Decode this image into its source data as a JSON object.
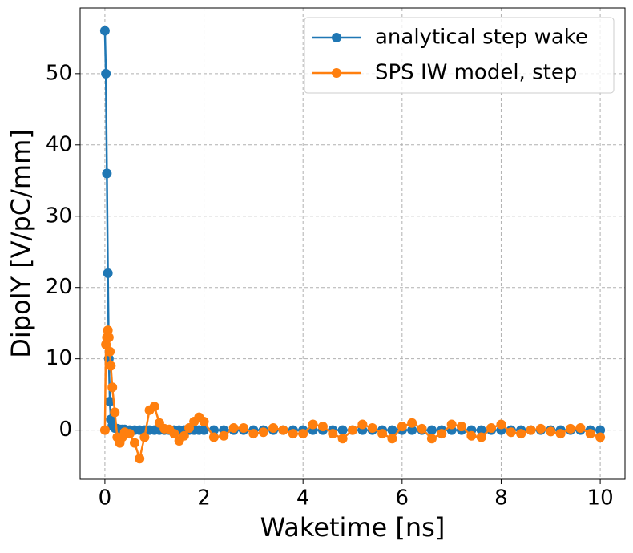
{
  "chart_data": {
    "type": "line",
    "x_label": "Waketime [ns]",
    "y_label": "DipolY [V/pC/mm]",
    "x": [
      0,
      0.02,
      0.04,
      0.06,
      0.08,
      0.1,
      0.12,
      0.15,
      0.2,
      0.25,
      0.3,
      0.35,
      0.4,
      0.5,
      0.6,
      0.7,
      0.8,
      0.9,
      1.0,
      1.1,
      1.2,
      1.3,
      1.4,
      1.5,
      1.6,
      1.7,
      1.8,
      1.9,
      2.0,
      2.2,
      2.4,
      2.6,
      2.8,
      3.0,
      3.2,
      3.4,
      3.6,
      3.8,
      4.0,
      4.2,
      4.4,
      4.6,
      4.8,
      5.0,
      5.2,
      5.4,
      5.6,
      5.8,
      6.0,
      6.2,
      6.4,
      6.6,
      6.8,
      7.0,
      7.2,
      7.4,
      7.6,
      7.8,
      8.0,
      8.2,
      8.4,
      8.6,
      8.8,
      9.0,
      9.2,
      9.4,
      9.6,
      9.8,
      10.0
    ],
    "series": [
      {
        "name": "analytical step wake",
        "color": "#1f77b4",
        "values": [
          56,
          50,
          36,
          22,
          10,
          4,
          1.5,
          0.6,
          0.3,
          0.2,
          0.1,
          0.1,
          0.1,
          0,
          0,
          0,
          0,
          0,
          0,
          0,
          0,
          0,
          0,
          0,
          0,
          0,
          0,
          0,
          0,
          0,
          0,
          0,
          0,
          0,
          0,
          0,
          0,
          0,
          0,
          0,
          0,
          0,
          0,
          0,
          0,
          0,
          0,
          0,
          0,
          0,
          0,
          0,
          0,
          0,
          0,
          0,
          0,
          0,
          0,
          0,
          0,
          0,
          0,
          0,
          0,
          0,
          0,
          0,
          0
        ]
      },
      {
        "name": "SPS IW model, step",
        "color": "#ff7f0e",
        "values": [
          0,
          12,
          13,
          14,
          13,
          11,
          9,
          6,
          2.5,
          -1,
          -1.8,
          -1,
          -0.3,
          -0.5,
          -1.8,
          -4,
          -1,
          2.8,
          3.3,
          1,
          0.2,
          0.1,
          -0.5,
          -1.5,
          -0.8,
          0.3,
          1.2,
          1.8,
          1.2,
          -1,
          -0.8,
          0.3,
          0.3,
          -0.5,
          -0.3,
          0.3,
          0,
          -0.5,
          -0.5,
          0.8,
          0.5,
          -0.5,
          -1.2,
          0,
          0.8,
          0.3,
          -0.5,
          -1.2,
          0.5,
          1,
          0.2,
          -1.2,
          -0.5,
          0.8,
          0.5,
          -0.8,
          -1,
          0.3,
          0.8,
          -0.3,
          -0.5,
          0,
          0.2,
          -0.2,
          -0.5,
          0.2,
          0.3,
          -0.5,
          -1
        ]
      }
    ],
    "xlim": [
      -0.5,
      10.5
    ],
    "ylim": [
      -6.9,
      59.2
    ],
    "xticks": [
      0,
      2,
      4,
      6,
      8,
      10
    ],
    "yticks": [
      0,
      10,
      20,
      30,
      40,
      50
    ],
    "grid": true,
    "legend": "upper right"
  }
}
